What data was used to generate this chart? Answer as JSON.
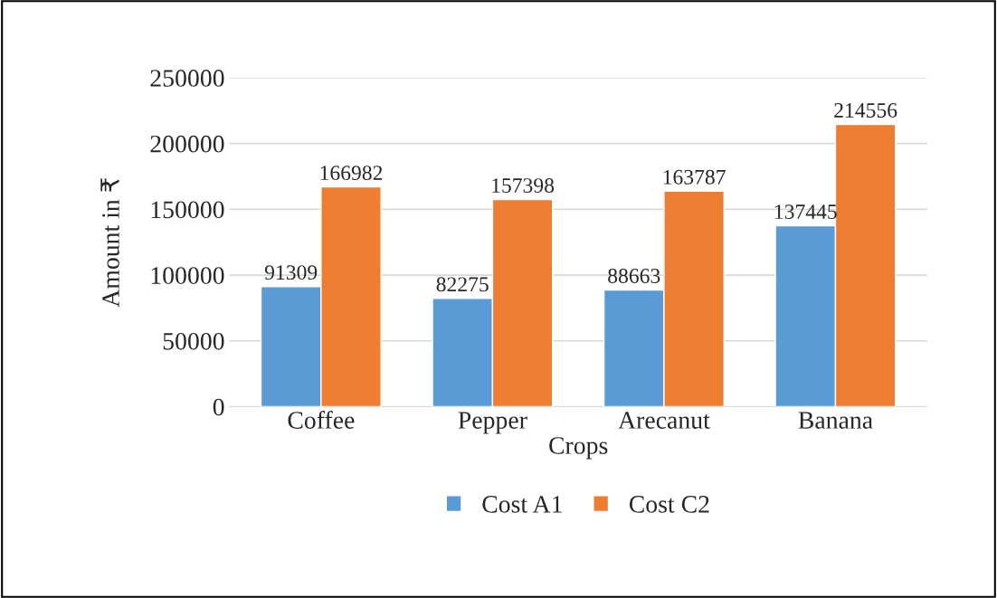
{
  "chart_data": {
    "type": "bar",
    "xlabel": "Crops",
    "ylabel": "Amount in ₹",
    "categories": [
      "Coffee",
      "Pepper",
      "Arecanut",
      "Banana"
    ],
    "series": [
      {
        "name": "Cost A1",
        "color": "#5b9bd5",
        "values": [
          91309,
          82275,
          88663,
          137445
        ]
      },
      {
        "name": "Cost C2",
        "color": "#ed7d31",
        "values": [
          166982,
          157398,
          163787,
          214556
        ]
      }
    ],
    "ylim": [
      0,
      250000
    ],
    "yticks": [
      0,
      50000,
      100000,
      150000,
      200000,
      250000
    ],
    "grid": "y",
    "legend": "bottom",
    "data_labels": true
  }
}
